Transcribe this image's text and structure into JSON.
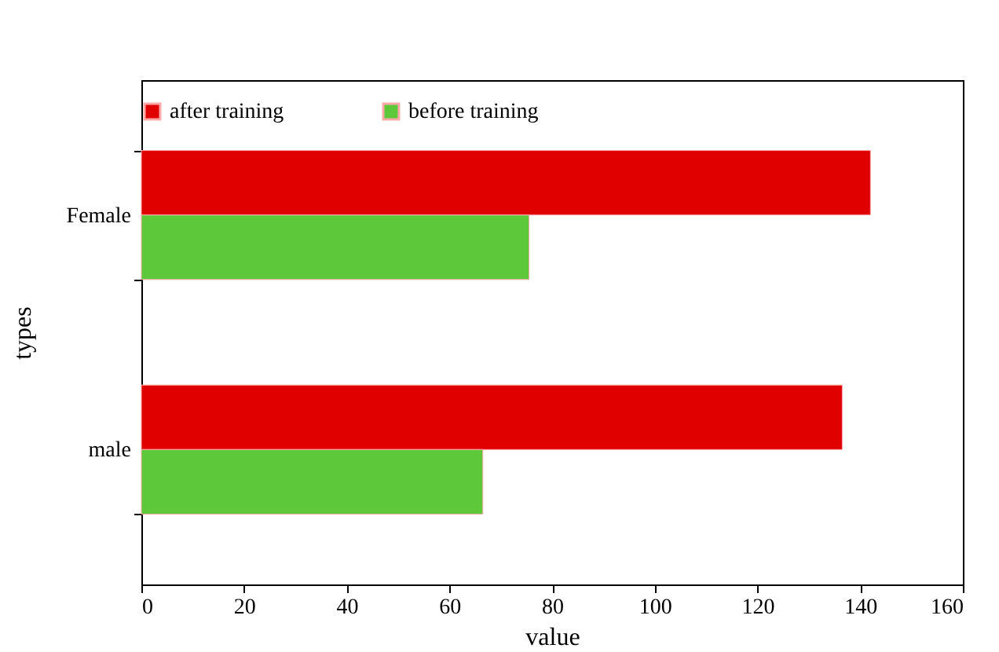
{
  "chart_data": {
    "type": "bar",
    "orientation": "horizontal",
    "xlabel": "value",
    "ylabel": "types",
    "categories": [
      "Female",
      "male"
    ],
    "series": [
      {
        "name": "after training",
        "color": "#e00000",
        "values": [
          142,
          136.5
        ]
      },
      {
        "name": "before training",
        "color": "#5cc83a",
        "values": [
          75.5,
          66.5
        ]
      }
    ],
    "xlim": [
      0,
      160
    ],
    "xticks": [
      0,
      20,
      40,
      60,
      80,
      100,
      120,
      140,
      160
    ],
    "grid": false,
    "legend": "top"
  }
}
